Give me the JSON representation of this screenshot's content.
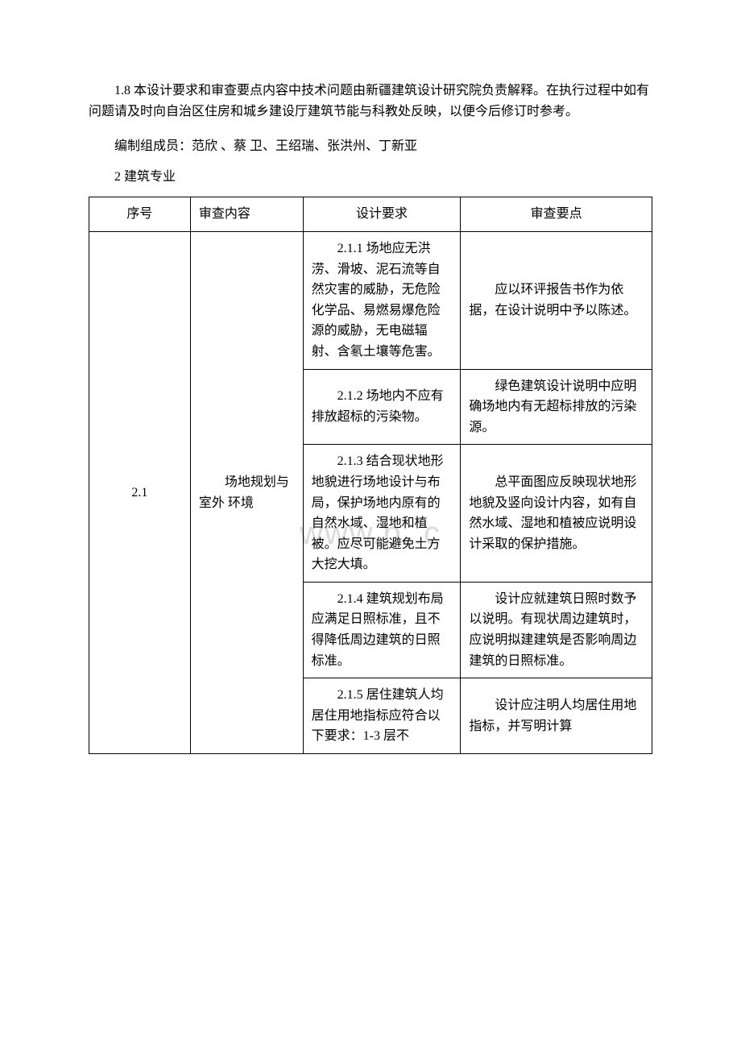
{
  "intro_paragraph": "1.8 本设计要求和审查要点内容中技术问题由新疆建筑设计研究院负责解释。在执行过程中如有问题请及时向自治区住房和城乡建设厅建筑节能与科教处反映，以便今后修订时参考。",
  "editors_line": "编制组成员：范欣 、蔡 卫、王绍瑞、张洪州、丁新亚",
  "section_heading": "2 建筑专业",
  "watermark": "www.b        .c",
  "table": {
    "headers": {
      "seq": "序号",
      "content": "审查内容",
      "requirement": "设计要求",
      "points": "审查要点"
    },
    "section_number": "2.1",
    "section_content": "场地规划与室外\n环境",
    "rows": [
      {
        "requirement": "2.1.1 场地应无洪涝、滑坡、泥石流等自然灾害的威胁，无危险化学品、易燃易爆危险源的威胁，无电磁辐射、含氡土壤等危害。",
        "points": "应以环评报告书作为依据，在设计说明中予以陈述。"
      },
      {
        "requirement": "2.1.2 场地内不应有排放超标的污染物。",
        "points": "绿色建筑设计说明中应明确场地内有无超标排放的污染源。"
      },
      {
        "requirement": "2.1.3 结合现状地形地貌进行场地设计与布局，保护场地内原有的自然水域、湿地和植被。应尽可能避免土方大挖大填。",
        "points": "总平面图应反映现状地形地貌及竖向设计内容，如有自然水域、湿地和植被应说明设计采取的保护措施。"
      },
      {
        "requirement": "2.1.4 建筑规划布局应满足日照标准，且不得降低周边建筑的日照标准。",
        "points": "设计应就建筑日照时数予以说明。有现状周边建筑时，应说明拟建建筑是否影响周边建筑的日照标准。"
      },
      {
        "requirement": "2.1.5 居住建筑人均居住用地指标应符合以下要求：1-3 层不",
        "points": "设计应注明人均居住用地指标，并写明计算"
      }
    ]
  }
}
